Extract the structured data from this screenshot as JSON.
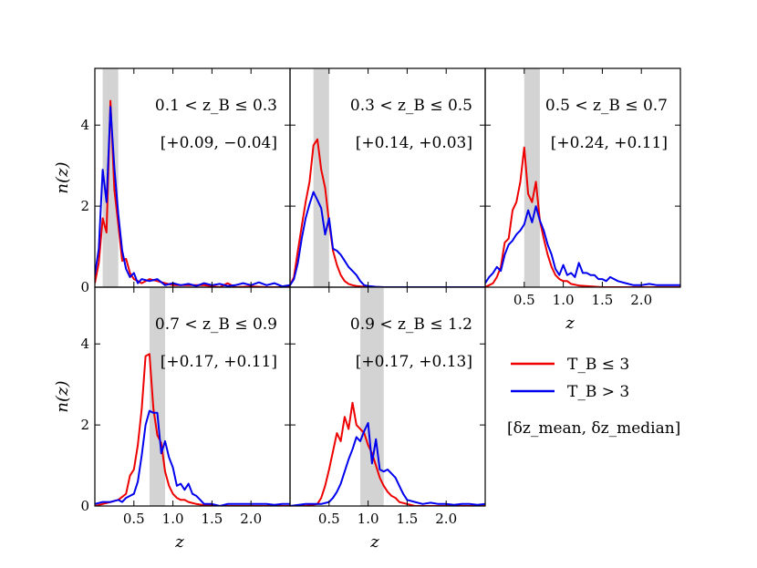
{
  "chart_data": {
    "type": "line",
    "title": "",
    "xlim": [
      0,
      2.5
    ],
    "ylim": [
      0,
      5.4
    ],
    "xticks": [
      0.5,
      1.0,
      1.5,
      2.0
    ],
    "xtick_labels": [
      "0.5",
      "1.0",
      "1.5",
      "2.0"
    ],
    "yticks": [
      0,
      2,
      4
    ],
    "ytick_labels": [
      "0",
      "2",
      "4"
    ],
    "xlabel": "z",
    "ylabel": "n(z)",
    "legend": {
      "placement": "lower-right",
      "entries": [
        {
          "label": "T_B ≤ 3",
          "color": "#ee0000"
        },
        {
          "label": "T_B > 3",
          "color": "#0000ee"
        }
      ],
      "note": "[δz_mean, δz_median]"
    },
    "panels": [
      {
        "range_label": "0.1 < z_B ≤ 0.3",
        "offsets_label": "[+0.09, −0.04]",
        "band": [
          0.1,
          0.3
        ],
        "series": [
          {
            "name": "T_B ≤ 3",
            "color": "#ee0000",
            "x": [
              0.0,
              0.05,
              0.1,
              0.15,
              0.2,
              0.25,
              0.3,
              0.35,
              0.4,
              0.45,
              0.5,
              0.55,
              0.6,
              0.7,
              0.8,
              0.9,
              1.0,
              1.2,
              1.4,
              1.6,
              1.7,
              1.8,
              2.0,
              2.2,
              2.5
            ],
            "y": [
              0.1,
              0.6,
              1.7,
              1.35,
              4.6,
              2.4,
              1.55,
              0.65,
              0.7,
              0.35,
              0.2,
              0.15,
              0.1,
              0.2,
              0.15,
              0.1,
              0.05,
              0.05,
              0.05,
              0.0,
              0.1,
              0.0,
              0.02,
              0.0,
              0.0
            ]
          },
          {
            "name": "T_B > 3",
            "color": "#0000ee",
            "x": [
              0.0,
              0.05,
              0.1,
              0.15,
              0.2,
              0.25,
              0.3,
              0.35,
              0.4,
              0.45,
              0.5,
              0.55,
              0.6,
              0.7,
              0.8,
              0.9,
              1.0,
              1.1,
              1.2,
              1.3,
              1.4,
              1.5,
              1.6,
              1.7,
              1.8,
              1.9,
              2.0,
              2.1,
              2.2,
              2.3,
              2.4,
              2.5
            ],
            "y": [
              0.3,
              0.95,
              2.9,
              2.1,
              4.45,
              2.95,
              1.8,
              0.9,
              0.45,
              0.25,
              0.35,
              0.1,
              0.2,
              0.15,
              0.2,
              0.05,
              0.1,
              0.05,
              0.08,
              0.03,
              0.1,
              0.05,
              0.08,
              0.03,
              0.05,
              0.1,
              0.05,
              0.12,
              0.05,
              0.1,
              0.02,
              0.05
            ]
          }
        ]
      },
      {
        "range_label": "0.3 < z_B ≤ 0.5",
        "offsets_label": "[+0.14, +0.03]",
        "band": [
          0.3,
          0.5
        ],
        "series": [
          {
            "name": "T_B ≤ 3",
            "color": "#ee0000",
            "x": [
              0.0,
              0.05,
              0.1,
              0.15,
              0.2,
              0.25,
              0.3,
              0.35,
              0.4,
              0.45,
              0.5,
              0.55,
              0.6,
              0.65,
              0.7,
              0.75,
              0.8,
              0.85,
              0.9,
              1.0,
              1.2,
              1.5,
              2.0,
              2.5
            ],
            "y": [
              0.05,
              0.25,
              0.9,
              1.5,
              2.1,
              2.6,
              3.5,
              3.65,
              2.9,
              2.45,
              1.6,
              0.9,
              0.55,
              0.3,
              0.15,
              0.08,
              0.05,
              0.03,
              0.02,
              0.01,
              0.0,
              0.0,
              0.0,
              0.0
            ]
          },
          {
            "name": "T_B > 3",
            "color": "#0000ee",
            "x": [
              0.0,
              0.05,
              0.1,
              0.15,
              0.2,
              0.25,
              0.3,
              0.35,
              0.4,
              0.45,
              0.5,
              0.55,
              0.6,
              0.65,
              0.7,
              0.75,
              0.8,
              0.85,
              0.9,
              0.95,
              1.0,
              1.05,
              1.1,
              1.2,
              1.3,
              1.5,
              2.0,
              2.5
            ],
            "y": [
              0.05,
              0.2,
              0.6,
              1.2,
              1.7,
              2.05,
              2.35,
              2.15,
              1.95,
              1.3,
              1.7,
              0.95,
              0.9,
              0.8,
              0.65,
              0.5,
              0.4,
              0.3,
              0.15,
              0.05,
              0.03,
              0.02,
              0.01,
              0.0,
              0.0,
              0.0,
              0.0,
              0.0
            ]
          }
        ]
      },
      {
        "range_label": "0.5 < z_B ≤ 0.7",
        "offsets_label": "[+0.24, +0.11]",
        "band": [
          0.5,
          0.7
        ],
        "series": [
          {
            "name": "T_B ≤ 3",
            "color": "#ee0000",
            "x": [
              0.0,
              0.05,
              0.1,
              0.15,
              0.2,
              0.25,
              0.3,
              0.35,
              0.4,
              0.45,
              0.5,
              0.55,
              0.6,
              0.65,
              0.7,
              0.75,
              0.8,
              0.85,
              0.9,
              0.95,
              1.0,
              1.05,
              1.1,
              1.2,
              1.5,
              2.0,
              2.5
            ],
            "y": [
              0.0,
              0.05,
              0.1,
              0.25,
              0.5,
              1.1,
              1.2,
              1.9,
              2.1,
              2.6,
              3.45,
              2.3,
              2.1,
              2.6,
              1.65,
              1.2,
              0.8,
              0.5,
              0.3,
              0.2,
              0.15,
              0.15,
              0.08,
              0.04,
              0.0,
              0.0,
              0.0
            ]
          },
          {
            "name": "T_B > 3",
            "color": "#0000ee",
            "x": [
              0.0,
              0.05,
              0.1,
              0.15,
              0.2,
              0.25,
              0.3,
              0.35,
              0.4,
              0.45,
              0.5,
              0.55,
              0.6,
              0.65,
              0.7,
              0.75,
              0.8,
              0.85,
              0.9,
              0.95,
              1.0,
              1.05,
              1.1,
              1.15,
              1.2,
              1.25,
              1.3,
              1.35,
              1.4,
              1.45,
              1.5,
              1.55,
              1.6,
              1.7,
              1.8,
              1.9,
              2.0,
              2.1,
              2.2,
              2.3,
              2.4,
              2.5
            ],
            "y": [
              0.1,
              0.25,
              0.35,
              0.5,
              0.4,
              0.8,
              1.05,
              1.15,
              1.3,
              1.4,
              1.55,
              1.9,
              1.6,
              2.0,
              1.65,
              1.4,
              1.05,
              0.8,
              0.45,
              0.3,
              0.55,
              0.3,
              0.35,
              0.25,
              0.6,
              0.35,
              0.35,
              0.3,
              0.3,
              0.2,
              0.2,
              0.15,
              0.25,
              0.15,
              0.1,
              0.05,
              0.05,
              0.08,
              0.05,
              0.05,
              0.05,
              0.05
            ]
          }
        ]
      },
      {
        "range_label": "0.7 < z_B ≤ 0.9",
        "offsets_label": "[+0.17, +0.11]",
        "band": [
          0.7,
          0.9
        ],
        "series": [
          {
            "name": "T_B ≤ 3",
            "color": "#ee0000",
            "x": [
              0.0,
              0.1,
              0.2,
              0.3,
              0.4,
              0.45,
              0.5,
              0.55,
              0.6,
              0.65,
              0.7,
              0.75,
              0.8,
              0.85,
              0.9,
              0.95,
              1.0,
              1.05,
              1.1,
              1.15,
              1.2,
              1.3,
              1.4,
              1.6,
              2.0,
              2.5
            ],
            "y": [
              0.0,
              0.05,
              0.1,
              0.15,
              0.3,
              0.75,
              0.9,
              1.5,
              2.4,
              3.7,
              3.75,
              2.4,
              1.75,
              1.55,
              0.85,
              0.5,
              0.3,
              0.2,
              0.15,
              0.15,
              0.1,
              0.05,
              0.02,
              0.0,
              0.0,
              0.0
            ]
          },
          {
            "name": "T_B > 3",
            "color": "#0000ee",
            "x": [
              0.0,
              0.1,
              0.2,
              0.3,
              0.35,
              0.4,
              0.45,
              0.5,
              0.55,
              0.6,
              0.65,
              0.7,
              0.75,
              0.8,
              0.85,
              0.9,
              0.95,
              1.0,
              1.05,
              1.1,
              1.15,
              1.2,
              1.25,
              1.3,
              1.35,
              1.4,
              1.5,
              1.6,
              1.7,
              1.8,
              1.9,
              2.0,
              2.1,
              2.2,
              2.3,
              2.4,
              2.5
            ],
            "y": [
              0.05,
              0.1,
              0.1,
              0.15,
              0.1,
              0.2,
              0.25,
              0.3,
              0.6,
              1.25,
              2.0,
              2.35,
              2.3,
              2.3,
              1.3,
              1.6,
              1.2,
              0.95,
              0.5,
              0.55,
              0.4,
              0.55,
              0.3,
              0.25,
              0.15,
              0.05,
              0.05,
              0.0,
              0.05,
              0.05,
              0.05,
              0.05,
              0.05,
              0.05,
              0.03,
              0.05,
              0.05
            ]
          }
        ]
      },
      {
        "range_label": "0.9 < z_B ≤ 1.2",
        "offsets_label": "[+0.17, +0.13]",
        "band": [
          0.9,
          1.2
        ],
        "series": [
          {
            "name": "T_B ≤ 3",
            "color": "#ee0000",
            "x": [
              0.0,
              0.2,
              0.35,
              0.4,
              0.45,
              0.5,
              0.55,
              0.6,
              0.65,
              0.7,
              0.75,
              0.8,
              0.85,
              0.9,
              0.95,
              1.0,
              1.05,
              1.1,
              1.15,
              1.2,
              1.25,
              1.3,
              1.35,
              1.4,
              1.5,
              1.6,
              2.0,
              2.5
            ],
            "y": [
              0.0,
              0.0,
              0.05,
              0.2,
              0.5,
              0.9,
              1.35,
              1.8,
              1.6,
              2.2,
              1.9,
              2.55,
              2.0,
              1.9,
              1.8,
              1.5,
              1.3,
              1.0,
              0.7,
              0.5,
              0.35,
              0.25,
              0.2,
              0.1,
              0.05,
              0.0,
              0.0,
              0.0
            ]
          },
          {
            "name": "T_B > 3",
            "color": "#0000ee",
            "x": [
              0.0,
              0.2,
              0.4,
              0.5,
              0.55,
              0.6,
              0.65,
              0.7,
              0.75,
              0.8,
              0.85,
              0.9,
              0.95,
              1.0,
              1.05,
              1.1,
              1.15,
              1.2,
              1.25,
              1.3,
              1.35,
              1.4,
              1.45,
              1.5,
              1.6,
              1.7,
              1.8,
              1.9,
              2.0,
              2.1,
              2.2,
              2.3,
              2.4,
              2.5
            ],
            "y": [
              0.0,
              0.05,
              0.05,
              0.1,
              0.2,
              0.35,
              0.55,
              0.85,
              1.15,
              1.4,
              1.7,
              1.6,
              1.85,
              2.05,
              1.05,
              1.65,
              0.9,
              0.85,
              0.9,
              0.8,
              0.7,
              0.5,
              0.3,
              0.15,
              0.1,
              0.05,
              0.08,
              0.05,
              0.05,
              0.03,
              0.05,
              0.05,
              0.03,
              0.05
            ]
          }
        ]
      }
    ]
  }
}
